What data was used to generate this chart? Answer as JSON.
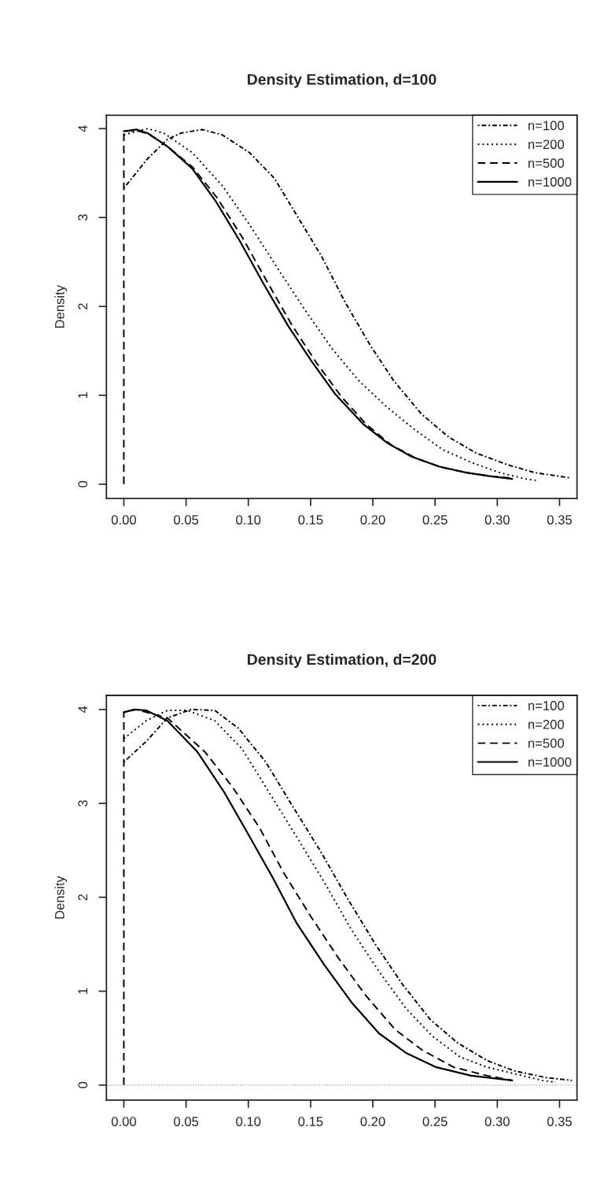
{
  "chart_data": [
    {
      "type": "line",
      "title": "Density Estimation, d=100",
      "ylabel": "Density",
      "xlim": [
        -0.014,
        0.364
      ],
      "ylim": [
        -0.16,
        4.15
      ],
      "xticks": [
        {
          "value": 0,
          "label": "0.00"
        },
        0.05,
        {
          "value": 0.1,
          "label": "0.10"
        },
        0.15,
        {
          "value": 0.2,
          "label": "0.20"
        },
        0.25,
        {
          "value": 0.3,
          "label": "0.30"
        },
        0.35
      ],
      "yticks": [
        0,
        1,
        2,
        3,
        4
      ],
      "grid": false,
      "legend": "top right",
      "marker": "none",
      "series": [
        {
          "name": "n=100",
          "color": "#000000",
          "line_style": "dashdot",
          "x": [
            0,
            0.019,
            0.035,
            0.046,
            0.063,
            0.079,
            0.101,
            0.121,
            0.14,
            0.159,
            0.178,
            0.198,
            0.217,
            0.239,
            0.261,
            0.283,
            0.308,
            0.33,
            0.359
          ],
          "values": [
            3.33,
            3.66,
            3.88,
            3.95,
            3.99,
            3.93,
            3.73,
            3.44,
            3.0,
            2.56,
            2.04,
            1.56,
            1.16,
            0.79,
            0.53,
            0.35,
            0.22,
            0.13,
            0.07
          ]
        },
        {
          "name": "n=200",
          "color": "#000000",
          "line_style": "dotted",
          "x": [
            0,
            0.019,
            0.032,
            0.055,
            0.079,
            0.101,
            0.123,
            0.145,
            0.167,
            0.189,
            0.212,
            0.234,
            0.256,
            0.28,
            0.302,
            0.322,
            0.333
          ],
          "values": [
            3.93,
            4.0,
            3.95,
            3.73,
            3.36,
            2.92,
            2.44,
            1.97,
            1.53,
            1.16,
            0.86,
            0.61,
            0.39,
            0.24,
            0.13,
            0.06,
            0.04
          ]
        },
        {
          "name": "n=500",
          "color": "#000000",
          "line_style": "dashed",
          "x": [
            0,
            0,
            0.01,
            0.02,
            0.035,
            0.055,
            0.075,
            0.095,
            0.115,
            0.135,
            0.155,
            0.175,
            0.195,
            0.215,
            0.235,
            0.255,
            0.275,
            0.295,
            0.31
          ],
          "values": [
            0,
            3.97,
            3.98,
            3.94,
            3.8,
            3.57,
            3.22,
            2.78,
            2.28,
            1.79,
            1.36,
            0.98,
            0.67,
            0.44,
            0.29,
            0.19,
            0.13,
            0.09,
            0.07
          ]
        },
        {
          "name": "n=1000",
          "color": "#000000",
          "line_style": "solid",
          "x": [
            0,
            0.0105,
            0.019,
            0.035,
            0.055,
            0.074,
            0.093,
            0.112,
            0.132,
            0.151,
            0.17,
            0.192,
            0.212,
            0.231,
            0.253,
            0.275,
            0.294,
            0.312
          ],
          "values": [
            3.97,
            3.99,
            3.95,
            3.8,
            3.55,
            3.18,
            2.74,
            2.26,
            1.78,
            1.38,
            1.01,
            0.68,
            0.46,
            0.31,
            0.2,
            0.13,
            0.09,
            0.06
          ]
        }
      ]
    },
    {
      "type": "line",
      "title": "Density Estimation, d=200",
      "ylabel": "Density",
      "xlim": [
        -0.014,
        0.364
      ],
      "ylim": [
        -0.16,
        4.15
      ],
      "xticks": [
        {
          "value": 0,
          "label": "0.00"
        },
        0.05,
        {
          "value": 0.1,
          "label": "0.10"
        },
        0.15,
        {
          "value": 0.2,
          "label": "0.20"
        },
        0.25,
        {
          "value": 0.3,
          "label": "0.30"
        },
        0.35
      ],
      "yticks": [
        0,
        1,
        2,
        3,
        4
      ],
      "grid": false,
      "legend": "top right",
      "marker": "none",
      "ref_lines": [
        {
          "axis": "y",
          "value": 0,
          "color": "#888888",
          "line_style": "dotted"
        }
      ],
      "series": [
        {
          "name": "n=100",
          "color": "#000000",
          "line_style": "dashdot",
          "x": [
            0,
            0.018,
            0.035,
            0.054,
            0.073,
            0.092,
            0.114,
            0.136,
            0.158,
            0.18,
            0.202,
            0.224,
            0.246,
            0.268,
            0.292,
            0.314,
            0.339,
            0.36
          ],
          "values": [
            3.44,
            3.66,
            3.91,
            4.0,
            3.99,
            3.8,
            3.44,
            2.96,
            2.49,
            1.98,
            1.5,
            1.07,
            0.7,
            0.45,
            0.26,
            0.15,
            0.08,
            0.05
          ]
        },
        {
          "name": "n=200",
          "color": "#000000",
          "line_style": "dotted",
          "x": [
            0,
            0.018,
            0.035,
            0.051,
            0.073,
            0.095,
            0.117,
            0.139,
            0.161,
            0.183,
            0.205,
            0.227,
            0.248,
            0.27,
            0.292,
            0.314,
            0.336,
            0.347
          ],
          "values": [
            3.69,
            3.88,
            3.99,
            3.99,
            3.88,
            3.58,
            3.11,
            2.64,
            2.16,
            1.65,
            1.21,
            0.81,
            0.52,
            0.3,
            0.19,
            0.12,
            0.05,
            0.03
          ]
        },
        {
          "name": "n=500",
          "color": "#000000",
          "line_style": "dashed",
          "x": [
            0,
            0,
            0.01,
            0.035,
            0.065,
            0.087,
            0.109,
            0.128,
            0.15,
            0.172,
            0.194,
            0.218,
            0.24,
            0.265,
            0.292,
            0.312
          ],
          "values": [
            0,
            3.97,
            4.0,
            3.91,
            3.55,
            3.18,
            2.74,
            2.27,
            1.8,
            1.36,
            0.96,
            0.59,
            0.37,
            0.19,
            0.1,
            0.05
          ]
        },
        {
          "name": "n=1000",
          "color": "#000000",
          "line_style": "solid",
          "x": [
            0,
            0.0085,
            0.018,
            0.035,
            0.059,
            0.081,
            0.1,
            0.12,
            0.139,
            0.161,
            0.183,
            0.205,
            0.227,
            0.251,
            0.279,
            0.312
          ],
          "values": [
            3.97,
            4.0,
            3.99,
            3.88,
            3.55,
            3.11,
            2.67,
            2.2,
            1.72,
            1.28,
            0.88,
            0.55,
            0.34,
            0.19,
            0.1,
            0.05
          ]
        }
      ]
    }
  ]
}
